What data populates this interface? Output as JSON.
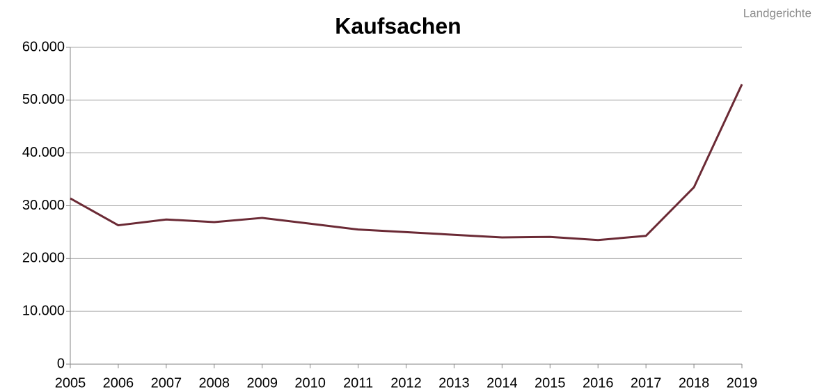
{
  "chart_data": {
    "type": "line",
    "title": "Kaufsachen",
    "annotation": "Landgerichte",
    "categories": [
      "2005",
      "2006",
      "2007",
      "2008",
      "2009",
      "2010",
      "2011",
      "2012",
      "2013",
      "2014",
      "2015",
      "2016",
      "2017",
      "2018",
      "2019"
    ],
    "series": [
      {
        "name": "Kaufsachen",
        "color": "#6b2a35",
        "values": [
          31400,
          26300,
          27400,
          26900,
          27700,
          26600,
          25500,
          25000,
          24500,
          24000,
          24100,
          23500,
          24300,
          33500,
          53000
        ]
      }
    ],
    "ylim": [
      0,
      60000
    ],
    "yticks": [
      0,
      {
        "value": 10000,
        "label": "10.000"
      },
      {
        "value": 20000,
        "label": "20.000"
      },
      {
        "value": 30000,
        "label": "30.000"
      },
      {
        "value": 40000,
        "label": "40.000"
      },
      {
        "value": 50000,
        "label": "50.000"
      },
      {
        "value": 60000,
        "label": "60.000"
      }
    ],
    "grid": true
  }
}
